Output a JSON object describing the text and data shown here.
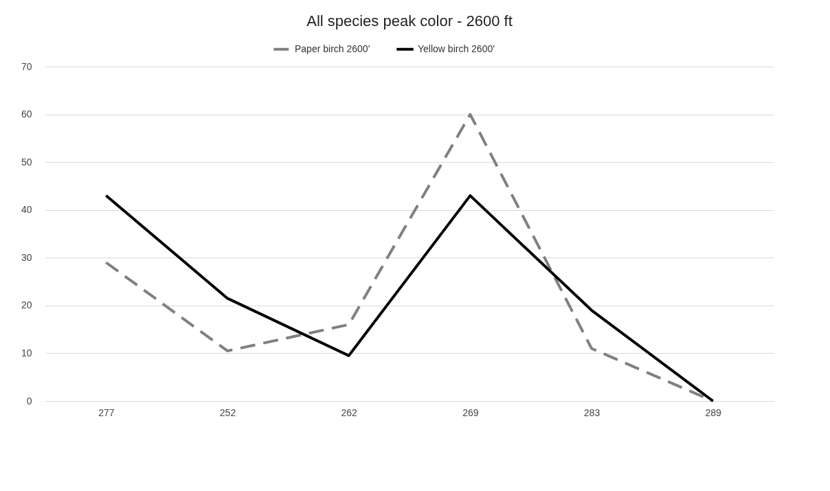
{
  "chart_data": {
    "type": "line",
    "title": "All species peak color - 2600 ft",
    "categories": [
      "277",
      "252",
      "262",
      "269",
      "283",
      "289"
    ],
    "series": [
      {
        "name": "Paper birch 2600'",
        "color": "#808080",
        "line_style": "dashed",
        "values": [
          29,
          10.5,
          16,
          60,
          11,
          0
        ]
      },
      {
        "name": "Yellow birch 2600'",
        "color": "#000000",
        "line_style": "solid",
        "values": [
          43,
          21.5,
          9.5,
          43,
          19,
          0
        ]
      }
    ],
    "ylim": [
      0,
      70
    ],
    "yticks": [
      0,
      10,
      20,
      30,
      40,
      50,
      60,
      70
    ],
    "grid": "y",
    "legend": "top",
    "marker": "none"
  }
}
